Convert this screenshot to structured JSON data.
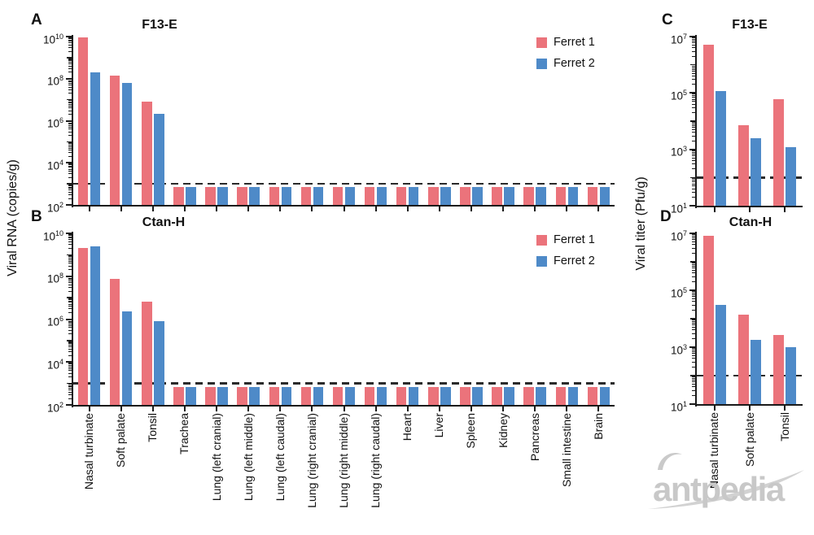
{
  "figure": {
    "left_ylabel": "Viral RNA (copies/g)",
    "right_ylabel": "Viral titer (Pfu/g)",
    "watermark": "antpedia",
    "colors": {
      "ferret1": "#EB737B",
      "ferret2": "#4E8AC8",
      "axis": "#1A1A1A",
      "dashed_line": "#2A2A2A",
      "watermark": "#C8C8C8",
      "watermark_swoosh": "#D2D2D2"
    }
  },
  "chart_data": [
    {
      "panel": "A",
      "type": "bar",
      "title": "F13-E",
      "ylabel": "Viral RNA (copies/g)",
      "y_scale": "log",
      "ylim": [
        100,
        10000000000
      ],
      "ytick_exponents": [
        10,
        8,
        6,
        4,
        2
      ],
      "detection_limit": 1000,
      "legend_position": "top-right",
      "legend_items": [
        "Ferret 1",
        "Ferret 2"
      ],
      "categories": [
        "Nasal turbinate",
        "Soft palate",
        "Tonsil",
        "Trachea",
        "Lung (left cranial)",
        "Lung (left middle)",
        "Lung (left caudal)",
        "Lung (right cranial)",
        "Lung (right middle)",
        "Lung (right caudal)",
        "Heart",
        "Liver",
        "Spleen",
        "Kidney",
        "Pancreas",
        "Small intestine",
        "Brain"
      ],
      "series": [
        {
          "name": "Ferret 1",
          "color": "#EB737B",
          "values": [
            9000000000,
            140000000,
            8000000,
            700,
            700,
            700,
            700,
            700,
            700,
            700,
            700,
            700,
            700,
            700,
            700,
            700,
            700
          ]
        },
        {
          "name": "Ferret 2",
          "color": "#4E8AC8",
          "values": [
            200000000,
            60000000,
            2200000,
            700,
            700,
            700,
            700,
            700,
            700,
            700,
            700,
            700,
            700,
            700,
            700,
            700,
            700
          ]
        }
      ]
    },
    {
      "panel": "B",
      "type": "bar",
      "title": "Ctan-H",
      "ylabel": "Viral RNA (copies/g)",
      "y_scale": "log",
      "ylim": [
        100,
        10000000000
      ],
      "ytick_exponents": [
        10,
        8,
        6,
        4,
        2
      ],
      "detection_limit": 1000,
      "legend_position": "top-right",
      "legend_items": [
        "Ferret 1",
        "Ferret 2"
      ],
      "categories": [
        "Nasal turbinate",
        "Soft palate",
        "Tonsil",
        "Trachea",
        "Lung (left cranial)",
        "Lung (left middle)",
        "Lung (left caudal)",
        "Lung (right cranial)",
        "Lung (right middle)",
        "Lung (right caudal)",
        "Heart",
        "Liver",
        "Spleen",
        "Kidney",
        "Pancreas",
        "Small intestine",
        "Brain"
      ],
      "series": [
        {
          "name": "Ferret 1",
          "color": "#EB737B",
          "values": [
            2100000000,
            75000000,
            6500000,
            700,
            700,
            700,
            700,
            700,
            700,
            700,
            700,
            700,
            700,
            700,
            700,
            700,
            700
          ]
        },
        {
          "name": "Ferret 2",
          "color": "#4E8AC8",
          "values": [
            2500000000,
            2300000,
            800000,
            700,
            700,
            700,
            700,
            700,
            700,
            700,
            700,
            700,
            700,
            700,
            700,
            700,
            700
          ]
        }
      ]
    },
    {
      "panel": "C",
      "type": "bar",
      "title": "F13-E",
      "ylabel": "Viral titer (Pfu/g)",
      "y_scale": "log",
      "ylim": [
        10,
        10000000
      ],
      "ytick_exponents": [
        7,
        5,
        3,
        1
      ],
      "detection_limit": 100,
      "categories": [
        "Nasal turbinate",
        "Soft palate",
        "Tonsil"
      ],
      "series": [
        {
          "name": "Ferret 1",
          "color": "#EB737B",
          "values": [
            5000000,
            7000,
            60000
          ]
        },
        {
          "name": "Ferret 2",
          "color": "#4E8AC8",
          "values": [
            120000,
            2500,
            1200
          ]
        }
      ]
    },
    {
      "panel": "D",
      "type": "bar",
      "title": "Ctan-H",
      "ylabel": "Viral titer (Pfu/g)",
      "y_scale": "log",
      "ylim": [
        10,
        10000000
      ],
      "ytick_exponents": [
        7,
        5,
        3,
        1
      ],
      "detection_limit": 100,
      "categories": [
        "Nasal turbinate",
        "Soft palate",
        "Tonsil"
      ],
      "series": [
        {
          "name": "Ferret 1",
          "color": "#EB737B",
          "values": [
            8000000,
            14000,
            2600
          ]
        },
        {
          "name": "Ferret 2",
          "color": "#4E8AC8",
          "values": [
            30000,
            1800,
            1000
          ]
        }
      ]
    }
  ]
}
